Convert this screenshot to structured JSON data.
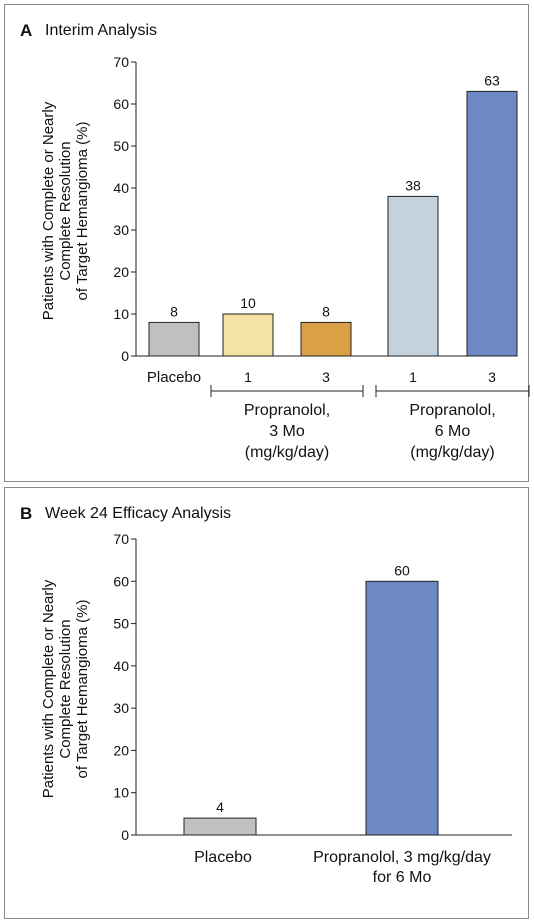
{
  "colors": {
    "placebo": "#c0c0c2",
    "prop_1_3mo": "#f5e3a3",
    "prop_3_3mo": "#d9a045",
    "prop_1_6mo": "#c2d2de",
    "prop_3_6mo": "#6d89c3"
  },
  "chart_data": [
    {
      "type": "bar",
      "panel_letter": "A",
      "title": "Interim Analysis",
      "ylabel": [
        "Patients with Complete or Nearly",
        "Complete Resolution",
        "of Target Hemangioma (%)"
      ],
      "ylim": [
        0,
        70
      ],
      "yticks": [
        "0",
        "10",
        "20",
        "30",
        "40",
        "50",
        "60",
        "70"
      ],
      "categories": [
        "Placebo",
        "1",
        "3",
        "1",
        "3"
      ],
      "values": [
        8,
        10,
        8,
        38,
        63
      ],
      "data_labels": [
        "8",
        "10",
        "8",
        "38",
        "63"
      ],
      "groups": [
        {
          "lines": [
            "Propranolol,",
            "3 Mo",
            "(mg/kg/day)"
          ],
          "members": [
            1,
            2
          ]
        },
        {
          "lines": [
            "Propranolol,",
            "6 Mo",
            "(mg/kg/day)"
          ],
          "members": [
            3,
            4
          ]
        }
      ],
      "grid": false,
      "legend": "none"
    },
    {
      "type": "bar",
      "panel_letter": "B",
      "title": "Week 24 Efficacy Analysis",
      "ylabel": [
        "Patients with Complete or Nearly",
        "Complete Resolution",
        "of Target Hemangioma (%)"
      ],
      "ylim": [
        0,
        70
      ],
      "yticks": [
        "0",
        "10",
        "20",
        "30",
        "40",
        "50",
        "60",
        "70"
      ],
      "categories": [
        [
          "Placebo"
        ],
        [
          "Propranolol, 3 mg/kg/day",
          "for 6 Mo"
        ]
      ],
      "values": [
        4,
        60
      ],
      "data_labels": [
        "4",
        "60"
      ],
      "grid": false,
      "legend": "none"
    }
  ]
}
